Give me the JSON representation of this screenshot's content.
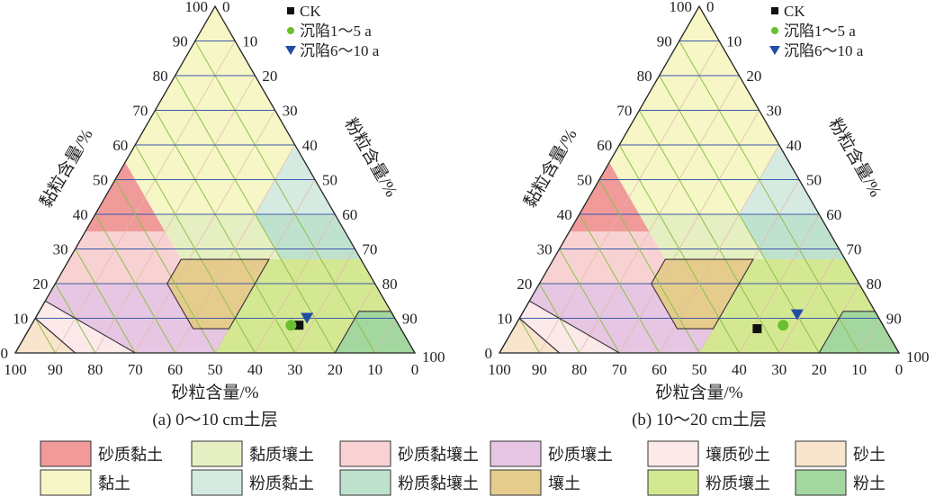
{
  "chart_data": [
    {
      "type": "scatter",
      "subtype": "ternary",
      "caption": "(a) 0～10 cm土层",
      "xlabel": "砂粒含量/%",
      "left_label": "黏粒含量/%",
      "right_label": "粉粒含量/%",
      "sand_ticks": [
        "100",
        "90",
        "80",
        "70",
        "60",
        "50",
        "40",
        "30",
        "20",
        "10",
        "0"
      ],
      "clay_ticks": [
        "0",
        "10",
        "20",
        "30",
        "40",
        "50",
        "60",
        "70",
        "80",
        "90",
        "100"
      ],
      "silt_ticks": [
        "0",
        "10",
        "20",
        "30",
        "40",
        "50",
        "60",
        "70",
        "80",
        "90",
        "100"
      ],
      "series": [
        {
          "name": "CK",
          "marker": "square",
          "color": "#111111",
          "points": [
            {
              "sand": 25,
              "clay": 8,
              "silt": 67
            }
          ]
        },
        {
          "name": "沉陷1～5 a",
          "marker": "circle",
          "color": "#6abf2e",
          "points": [
            {
              "sand": 27,
              "clay": 8,
              "silt": 65
            }
          ]
        },
        {
          "name": "沉陷6～10 a",
          "marker": "triangle-down",
          "color": "#1f4ea3",
          "points": [
            {
              "sand": 22,
              "clay": 10,
              "silt": 68
            }
          ]
        }
      ]
    },
    {
      "type": "scatter",
      "subtype": "ternary",
      "caption": "(b) 10～20 cm土层",
      "xlabel": "砂粒含量/%",
      "left_label": "黏粒含量/%",
      "right_label": "粉粒含量/%",
      "sand_ticks": [
        "100",
        "90",
        "80",
        "70",
        "60",
        "50",
        "40",
        "30",
        "20",
        "10",
        "0"
      ],
      "clay_ticks": [
        "0",
        "10",
        "20",
        "30",
        "40",
        "50",
        "60",
        "70",
        "80",
        "90",
        "100"
      ],
      "silt_ticks": [
        "0",
        "10",
        "20",
        "30",
        "40",
        "50",
        "60",
        "70",
        "80",
        "90",
        "100"
      ],
      "series": [
        {
          "name": "CK",
          "marker": "square",
          "color": "#111111",
          "points": [
            {
              "sand": 32,
              "clay": 7,
              "silt": 61
            }
          ]
        },
        {
          "name": "沉陷1～5 a",
          "marker": "circle",
          "color": "#6abf2e",
          "points": [
            {
              "sand": 25,
              "clay": 8,
              "silt": 67
            }
          ]
        },
        {
          "name": "沉陷6～10 a",
          "marker": "triangle-down",
          "color": "#1f4ea3",
          "points": [
            {
              "sand": 20,
              "clay": 11,
              "silt": 69
            }
          ]
        }
      ]
    }
  ],
  "texture_classes": [
    {
      "key": "sandy-clay",
      "label": "砂质黏土",
      "color": "#f09a9a",
      "vertices_sand_clay": [
        [
          45,
          55
        ],
        [
          65,
          35
        ],
        [
          45,
          35
        ]
      ]
    },
    {
      "key": "clay-loam",
      "label": "黏质壤土",
      "color": "#e6efc2",
      "vertices_sand_clay": [
        [
          20,
          40
        ],
        [
          45,
          40
        ],
        [
          45,
          27
        ],
        [
          20,
          27
        ]
      ]
    },
    {
      "key": "sandy-clay-loam",
      "label": "砂质黏壤土",
      "color": "#f8d2d2",
      "vertices_sand_clay": [
        [
          45,
          35
        ],
        [
          65,
          35
        ],
        [
          80,
          20
        ],
        [
          52,
          20
        ],
        [
          45,
          27
        ]
      ]
    },
    {
      "key": "sandy-loam",
      "label": "砂质壤土",
      "color": "#e6c6e2",
      "vertices_sand_clay": [
        [
          43,
          7
        ],
        [
          52,
          7
        ],
        [
          52,
          20
        ],
        [
          80,
          20
        ],
        [
          85,
          15
        ],
        [
          70,
          0
        ],
        [
          50,
          0
        ]
      ]
    },
    {
      "key": "loamy-sand",
      "label": "壤质砂土",
      "color": "#fce9ea",
      "vertices_sand_clay": [
        [
          70,
          0
        ],
        [
          85,
          15
        ],
        [
          90,
          10
        ],
        [
          85,
          0
        ]
      ]
    },
    {
      "key": "sand",
      "label": "砂土",
      "color": "#f9e4cc",
      "vertices_sand_clay": [
        [
          85,
          0
        ],
        [
          90,
          10
        ],
        [
          100,
          0
        ]
      ]
    },
    {
      "key": "clay",
      "label": "黏土",
      "color": "#f6f6c6",
      "vertices_sand_clay": [
        [
          0,
          100
        ],
        [
          0,
          60
        ],
        [
          20,
          40
        ],
        [
          45,
          40
        ],
        [
          45,
          55
        ]
      ]
    },
    {
      "key": "silty-clay",
      "label": "粉质黏土",
      "color": "#d5ebe2",
      "vertices_sand_clay": [
        [
          0,
          60
        ],
        [
          0,
          40
        ],
        [
          20,
          40
        ]
      ]
    },
    {
      "key": "silty-clay-loam",
      "label": "粉质黏壤土",
      "color": "#bfe2cf",
      "vertices_sand_clay": [
        [
          0,
          40
        ],
        [
          20,
          40
        ],
        [
          20,
          27
        ],
        [
          0,
          27
        ]
      ]
    },
    {
      "key": "loam",
      "label": "壤土",
      "color": "#e5cc8c",
      "vertices_sand_clay": [
        [
          23,
          27
        ],
        [
          45,
          27
        ],
        [
          52,
          20
        ],
        [
          52,
          7
        ],
        [
          43,
          7
        ]
      ]
    },
    {
      "key": "silt-loam",
      "label": "粉质壤土",
      "color": "#d4e891",
      "vertices_sand_clay": [
        [
          0,
          27
        ],
        [
          23,
          27
        ],
        [
          43,
          7
        ],
        [
          50,
          0
        ],
        [
          20,
          0
        ],
        [
          8,
          12
        ],
        [
          0,
          12
        ]
      ]
    },
    {
      "key": "silt",
      "label": "粉土",
      "color": "#a3d79f",
      "vertices_sand_clay": [
        [
          0,
          12
        ],
        [
          8,
          12
        ],
        [
          20,
          0
        ],
        [
          0,
          0
        ]
      ]
    }
  ],
  "grid_colors": {
    "clay": "#3b5ba8",
    "sand": "#8cc04a",
    "silt": "#e3b8a8"
  }
}
